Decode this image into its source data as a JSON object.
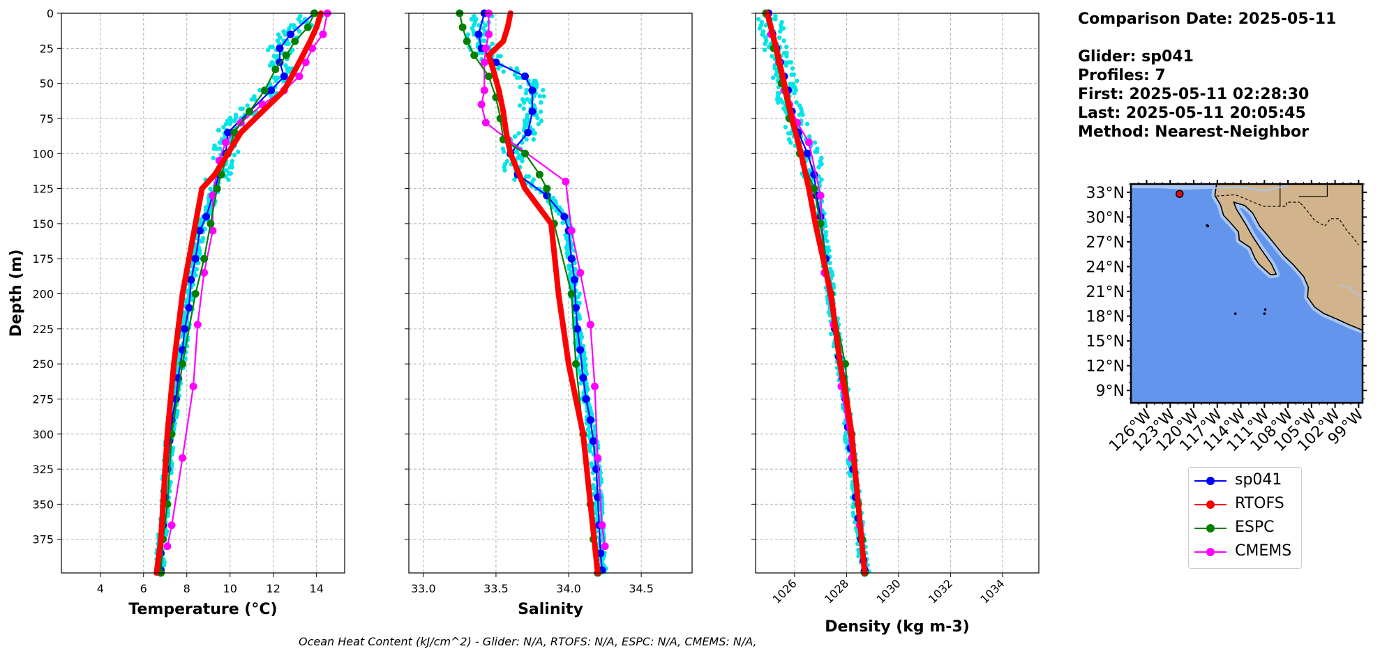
{
  "info": {
    "comparison_date": "Comparison Date: 2025-05-11",
    "glider": "Glider: sp041",
    "profiles": "Profiles: 7",
    "first": "First: 2025-05-11 02:28:30",
    "last": "Last: 2025-05-11 20:05:45",
    "method": "Method: Nearest-Neighbor"
  },
  "footer": "Ocean Heat Content (kJ/cm^2) - Glider: N/A,  RTOFS: N/A,  ESPC: N/A,  CMEMS: N/A,",
  "colors": {
    "sp041": "#0000ff",
    "rtofs": "#ff0000",
    "espc": "#008000",
    "cmems": "#ff00ff",
    "glider_raw": "#00e5e5",
    "ocean": "#6495ed",
    "shelf": "#a9c6f0",
    "land": "#d2b48c"
  },
  "legend": [
    {
      "key": "sp041",
      "label": "sp041",
      "color": "#0000ff"
    },
    {
      "key": "rtofs",
      "label": "RTOFS",
      "color": "#ff0000"
    },
    {
      "key": "espc",
      "label": "ESPC",
      "color": "#008000"
    },
    {
      "key": "cmems",
      "label": "CMEMS",
      "color": "#ff00ff"
    }
  ],
  "chart_data": [
    {
      "type": "line",
      "title": "",
      "xlabel": "Temperature (°C)",
      "ylabel": "Depth (m)",
      "xlim": [
        2.2,
        15.3
      ],
      "ylim": [
        399,
        0
      ],
      "xticks": [
        4,
        6,
        8,
        10,
        12,
        14
      ],
      "yticks": [
        0,
        25,
        50,
        75,
        100,
        125,
        150,
        175,
        200,
        225,
        250,
        275,
        300,
        325,
        350,
        375
      ],
      "grid": true,
      "series": [
        {
          "name": "sp041",
          "key": "sp041",
          "x": [
            13.9,
            12.8,
            12.3,
            12.3,
            12.5,
            11.9,
            10.9,
            9.9,
            9.8,
            9.5,
            9.2,
            8.9,
            8.6,
            8.4,
            8.2,
            8.1,
            7.9,
            7.8,
            7.6,
            7.5,
            7.3,
            7.2,
            7.1,
            7.0,
            6.9,
            6.8,
            6.8
          ],
          "y": [
            0,
            15,
            25,
            35,
            45,
            55,
            70,
            85,
            100,
            115,
            130,
            145,
            155,
            175,
            190,
            210,
            225,
            240,
            260,
            275,
            290,
            305,
            325,
            345,
            365,
            385,
            397
          ]
        },
        {
          "name": "RTOFS",
          "key": "rtofs",
          "x": [
            14.2,
            14.0,
            13.7,
            13.2,
            12.5,
            11.5,
            10.5,
            9.9,
            9.3,
            8.7,
            8.4,
            8.1,
            7.8,
            7.6,
            7.4,
            7.1,
            6.9,
            6.8,
            6.6
          ],
          "y": [
            0,
            10,
            20,
            35,
            55,
            70,
            85,
            100,
            115,
            125,
            150,
            175,
            200,
            225,
            250,
            300,
            350,
            375,
            399
          ]
        },
        {
          "name": "ESPC",
          "key": "espc",
          "x": [
            13.9,
            13.6,
            13.0,
            12.6,
            12.1,
            11.6,
            10.9,
            10.2,
            9.9,
            9.6,
            9.4,
            9.1,
            8.8,
            8.4,
            7.8,
            7.3,
            7.1,
            6.9,
            6.8
          ],
          "y": [
            0,
            10,
            20,
            30,
            40,
            55,
            70,
            85,
            100,
            115,
            125,
            150,
            175,
            200,
            250,
            300,
            350,
            375,
            399
          ]
        },
        {
          "name": "CMEMS",
          "key": "cmems",
          "x": [
            14.5,
            14.3,
            13.8,
            13.5,
            13.2,
            12.5,
            11.5,
            10.5,
            9.8,
            9.5,
            9.2,
            9.2,
            8.8,
            8.5,
            8.3,
            7.8,
            7.3,
            7.1
          ],
          "y": [
            0,
            15,
            25,
            35,
            45,
            55,
            65,
            78,
            92,
            105,
            130,
            155,
            185,
            222,
            266,
            317,
            365,
            380
          ]
        }
      ]
    },
    {
      "type": "line",
      "xlabel": "Salinity",
      "ylabel": "",
      "xlim": [
        32.9,
        34.85
      ],
      "ylim": [
        399,
        0
      ],
      "xticks": [
        33.0,
        33.5,
        34.0,
        34.5
      ],
      "yticks": [
        0,
        25,
        50,
        75,
        100,
        125,
        150,
        175,
        200,
        225,
        250,
        275,
        300,
        325,
        350,
        375
      ],
      "grid": true,
      "series": [
        {
          "name": "sp041",
          "key": "sp041",
          "x": [
            33.42,
            33.38,
            33.4,
            33.5,
            33.7,
            33.75,
            33.75,
            33.72,
            33.6,
            33.65,
            33.85,
            33.97,
            34.0,
            34.02,
            34.04,
            34.05,
            34.06,
            34.08,
            34.1,
            34.12,
            34.15,
            34.17,
            34.19,
            34.2,
            34.21,
            34.22,
            34.23
          ],
          "y": [
            0,
            15,
            25,
            35,
            45,
            55,
            70,
            85,
            100,
            115,
            130,
            145,
            155,
            175,
            190,
            210,
            225,
            240,
            260,
            275,
            290,
            305,
            325,
            345,
            365,
            385,
            397
          ]
        },
        {
          "name": "RTOFS",
          "key": "rtofs",
          "x": [
            33.6,
            33.58,
            33.55,
            33.45,
            33.48,
            33.52,
            33.55,
            33.57,
            33.6,
            33.7,
            33.88,
            33.93,
            34.0,
            34.05,
            34.1,
            34.15,
            34.2
          ],
          "y": [
            0,
            10,
            20,
            30,
            40,
            55,
            70,
            85,
            100,
            125,
            150,
            200,
            250,
            275,
            300,
            350,
            399
          ]
        },
        {
          "name": "ESPC",
          "key": "espc",
          "x": [
            33.25,
            33.27,
            33.3,
            33.35,
            33.45,
            33.5,
            33.53,
            33.55,
            33.7,
            33.8,
            33.85,
            33.9,
            34.02,
            34.05,
            34.1,
            34.15,
            34.17,
            34.2
          ],
          "y": [
            0,
            10,
            20,
            30,
            45,
            60,
            75,
            90,
            100,
            115,
            125,
            150,
            200,
            250,
            300,
            350,
            375,
            399
          ]
        },
        {
          "name": "CMEMS",
          "key": "cmems",
          "x": [
            33.45,
            33.45,
            33.43,
            33.42,
            33.42,
            33.4,
            33.43,
            33.58,
            33.98,
            34.02,
            34.08,
            34.15,
            34.18,
            34.2,
            34.23,
            34.25
          ],
          "y": [
            0,
            15,
            25,
            35,
            55,
            65,
            78,
            90,
            120,
            155,
            185,
            222,
            266,
            317,
            365,
            380
          ]
        }
      ]
    },
    {
      "type": "line",
      "xlabel": "Density (kg m-3)",
      "ylabel": "",
      "xlim": [
        1024.5,
        1035.4
      ],
      "ylim": [
        399,
        0
      ],
      "xticks": [
        1026,
        1028,
        1030,
        1032,
        1034
      ],
      "yticks": [
        0,
        25,
        50,
        75,
        100,
        125,
        150,
        175,
        200,
        225,
        250,
        275,
        300,
        325,
        350,
        375
      ],
      "grid": true,
      "series": [
        {
          "name": "sp041",
          "key": "sp041",
          "x": [
            1025.0,
            1025.15,
            1025.3,
            1025.45,
            1025.6,
            1025.75,
            1025.9,
            1026.15,
            1026.5,
            1026.75,
            1026.85,
            1027.0,
            1027.2,
            1027.4,
            1027.55,
            1027.7,
            1027.85,
            1027.95,
            1028.05,
            1028.15,
            1028.25,
            1028.35,
            1028.45,
            1028.55,
            1028.65,
            1028.7
          ],
          "y": [
            0,
            15,
            25,
            35,
            45,
            55,
            70,
            85,
            100,
            115,
            130,
            145,
            175,
            200,
            225,
            245,
            260,
            275,
            295,
            310,
            325,
            345,
            360,
            375,
            390,
            397
          ]
        },
        {
          "name": "RTOFS",
          "key": "rtofs",
          "x": [
            1024.95,
            1025.3,
            1025.6,
            1025.9,
            1026.25,
            1026.55,
            1026.8,
            1027.1,
            1027.4,
            1027.75,
            1028.0,
            1028.2,
            1028.45,
            1028.7
          ],
          "y": [
            0,
            25,
            50,
            75,
            100,
            125,
            150,
            175,
            200,
            250,
            275,
            300,
            350,
            399
          ]
        },
        {
          "name": "ESPC",
          "key": "espc",
          "x": [
            1024.9,
            1025.2,
            1025.5,
            1025.8,
            1026.2,
            1026.75,
            1027.0,
            1027.4,
            1027.95,
            1028.2,
            1028.45,
            1028.6,
            1028.7
          ],
          "y": [
            0,
            25,
            50,
            75,
            100,
            125,
            150,
            200,
            250,
            300,
            350,
            375,
            399
          ]
        },
        {
          "name": "CMEMS",
          "key": "cmems",
          "x": [
            1024.9,
            1025.1,
            1025.25,
            1025.4,
            1025.6,
            1025.8,
            1026.1,
            1026.55,
            1027.0,
            1027.15,
            1027.5,
            1027.8,
            1028.2,
            1028.5
          ],
          "y": [
            0,
            15,
            25,
            35,
            55,
            65,
            78,
            92,
            130,
            185,
            222,
            266,
            317,
            365
          ]
        }
      ]
    }
  ],
  "map": {
    "lat_ticks": [
      "33°N",
      "30°N",
      "27°N",
      "24°N",
      "21°N",
      "18°N",
      "15°N",
      "12°N",
      "9°N"
    ],
    "lon_ticks": [
      "126°W",
      "123°W",
      "120°W",
      "117°W",
      "114°W",
      "111°W",
      "108°W",
      "105°W",
      "102°W",
      "99°W"
    ],
    "lat_range": [
      7.5,
      34
    ],
    "lon_range": [
      -128,
      -98.5
    ],
    "glider_position": {
      "lon": -121.8,
      "lat": 32.8
    }
  }
}
